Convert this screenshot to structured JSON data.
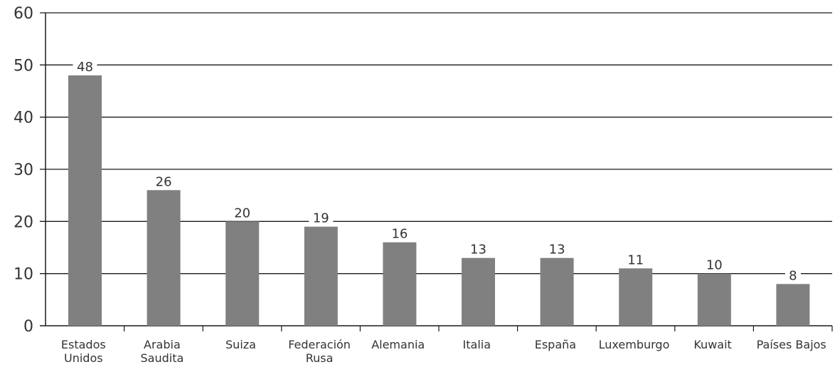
{
  "chart_data": {
    "type": "bar",
    "title": "",
    "xlabel": "",
    "ylabel": "",
    "categories": [
      [
        "Estados",
        "Unidos"
      ],
      [
        "Arabia",
        "Saudita"
      ],
      [
        "Suiza"
      ],
      [
        "Federación",
        "Rusa"
      ],
      [
        "Alemania"
      ],
      [
        "Italia"
      ],
      [
        "España"
      ],
      [
        "Luxemburgo"
      ],
      [
        "Kuwait"
      ],
      [
        "Países Bajos"
      ]
    ],
    "values": [
      48,
      26,
      20,
      19,
      16,
      13,
      13,
      11,
      10,
      8
    ],
    "ylim": [
      0,
      60
    ],
    "yticks": [
      0,
      10,
      20,
      30,
      40,
      50,
      60
    ],
    "grid": true,
    "legend": "none",
    "colors": {
      "bar": "#808080",
      "grid": "#1a1a1a",
      "text": "#333333"
    }
  }
}
